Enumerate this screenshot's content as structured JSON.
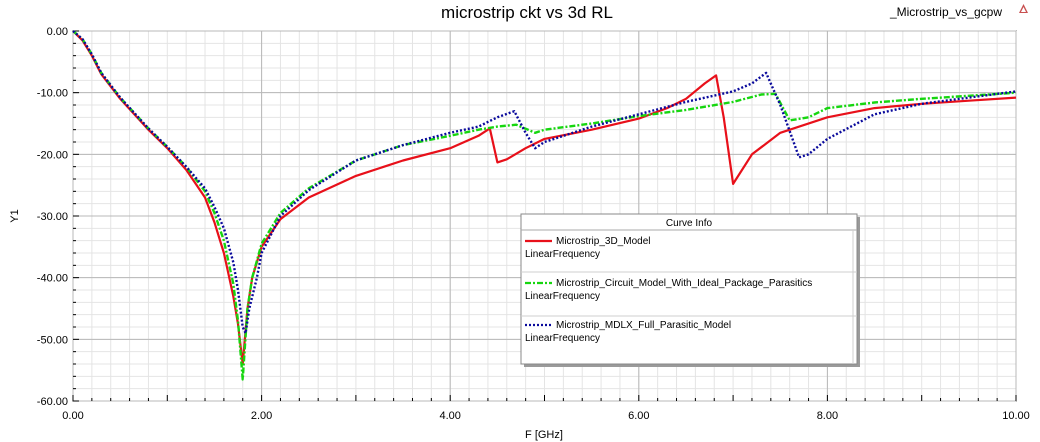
{
  "window": {
    "title": "microstrip ckt vs 3d RL",
    "project_name": "_Microstrip_vs_gcpw",
    "corner_icon": "hfss-logo-icon"
  },
  "legend": {
    "title": "Curve Info",
    "placement": "lower-right-center",
    "entries": [
      {
        "name": "Microstrip_3D_Model",
        "sweep": "LinearFrequency"
      },
      {
        "name": "Microstrip_Circuit_Model_With_Ideal_Package_Parasitics",
        "sweep": "LinearFrequency"
      },
      {
        "name": "Microstrip_MDLX_Full_Parasitic_Model",
        "sweep": "LinearFrequency"
      }
    ]
  },
  "chart_data": {
    "type": "line",
    "title": "microstrip ckt vs 3d RL",
    "xlabel": "F [GHz]",
    "ylabel": "Y1",
    "xlim": [
      0,
      10
    ],
    "ylim": [
      -60,
      0
    ],
    "xticks": [
      0,
      2,
      4,
      6,
      8,
      10
    ],
    "xtick_labels": [
      "0.00",
      "2.00",
      "4.00",
      "6.00",
      "8.00",
      "10.00"
    ],
    "yticks": [
      0,
      -10,
      -20,
      -30,
      -40,
      -50,
      -60
    ],
    "ytick_labels": [
      "0.00",
      "-10.00",
      "-20.00",
      "-30.00",
      "-40.00",
      "-50.00",
      "-60.00"
    ],
    "grid": true,
    "series": [
      {
        "name": "Microstrip_3D_Model",
        "color": "#e8101a",
        "style": "solid",
        "x": [
          0,
          0.1,
          0.2,
          0.3,
          0.5,
          0.8,
          1.0,
          1.2,
          1.4,
          1.5,
          1.6,
          1.7,
          1.75,
          1.8,
          1.85,
          1.9,
          2.0,
          2.2,
          2.5,
          3.0,
          3.5,
          4.0,
          4.3,
          4.42,
          4.5,
          4.6,
          4.8,
          5.0,
          5.5,
          6.0,
          6.3,
          6.5,
          6.7,
          6.82,
          6.9,
          7.0,
          7.2,
          7.5,
          8.0,
          8.5,
          9.0,
          9.5,
          10.0
        ],
        "y": [
          0,
          -1.5,
          -4.0,
          -7.0,
          -11.0,
          -16.0,
          -19.0,
          -22.5,
          -27.0,
          -31.0,
          -36.0,
          -43.0,
          -47.5,
          -54.0,
          -45.0,
          -40.0,
          -35.0,
          -30.5,
          -27.0,
          -23.5,
          -21.0,
          -19.0,
          -17.0,
          -15.8,
          -21.3,
          -20.8,
          -19.0,
          -17.5,
          -16.0,
          -14.2,
          -12.5,
          -11.0,
          -8.5,
          -7.2,
          -14.0,
          -24.8,
          -20.0,
          -16.5,
          -14.0,
          -12.5,
          -11.8,
          -11.3,
          -10.8
        ]
      },
      {
        "name": "Microstrip_Circuit_Model_With_Ideal_Package_Parasitics",
        "color": "#16d60f",
        "style": "dashdot",
        "x": [
          0,
          0.1,
          0.2,
          0.3,
          0.5,
          0.8,
          1.0,
          1.2,
          1.4,
          1.5,
          1.6,
          1.7,
          1.75,
          1.8,
          1.85,
          1.9,
          2.0,
          2.2,
          2.5,
          3.0,
          3.5,
          4.0,
          4.3,
          4.5,
          4.7,
          4.9,
          5.0,
          5.5,
          6.0,
          6.5,
          7.0,
          7.3,
          7.45,
          7.6,
          7.8,
          8.0,
          8.5,
          9.0,
          9.5,
          10.0
        ],
        "y": [
          0,
          -1.3,
          -3.8,
          -6.8,
          -10.8,
          -15.8,
          -18.8,
          -22.0,
          -26.0,
          -29.5,
          -34.0,
          -41.0,
          -47.0,
          -56.5,
          -45.0,
          -40.0,
          -34.5,
          -29.5,
          -25.5,
          -21.0,
          -18.5,
          -17.0,
          -16.0,
          -15.5,
          -15.2,
          -16.5,
          -16.0,
          -15.0,
          -13.8,
          -12.8,
          -11.5,
          -10.3,
          -10.2,
          -14.5,
          -14.0,
          -12.5,
          -11.6,
          -11.0,
          -10.5,
          -10.0
        ]
      },
      {
        "name": "Microstrip_MDLX_Full_Parasitic_Model",
        "color": "#0a0a9c",
        "style": "dotted",
        "x": [
          0,
          0.1,
          0.2,
          0.3,
          0.5,
          0.8,
          1.0,
          1.2,
          1.4,
          1.5,
          1.6,
          1.7,
          1.75,
          1.8,
          1.83,
          1.87,
          1.95,
          2.0,
          2.2,
          2.5,
          3.0,
          3.5,
          4.0,
          4.3,
          4.5,
          4.68,
          4.8,
          4.9,
          5.0,
          5.5,
          6.0,
          6.5,
          7.0,
          7.2,
          7.35,
          7.5,
          7.7,
          7.8,
          8.0,
          8.5,
          9.0,
          9.5,
          10.0
        ],
        "y": [
          0,
          -1.3,
          -3.8,
          -6.8,
          -10.8,
          -15.8,
          -18.8,
          -22.0,
          -25.5,
          -28.5,
          -32.0,
          -37.5,
          -42.0,
          -48.0,
          -49.0,
          -45.0,
          -40.0,
          -36.0,
          -30.0,
          -25.8,
          -21.0,
          -18.5,
          -16.5,
          -15.5,
          -14.0,
          -13.0,
          -16.5,
          -19.0,
          -18.0,
          -15.5,
          -13.5,
          -11.5,
          -9.8,
          -8.5,
          -6.8,
          -12.0,
          -20.5,
          -20.0,
          -17.5,
          -13.5,
          -11.8,
          -10.8,
          -9.8
        ]
      }
    ]
  }
}
